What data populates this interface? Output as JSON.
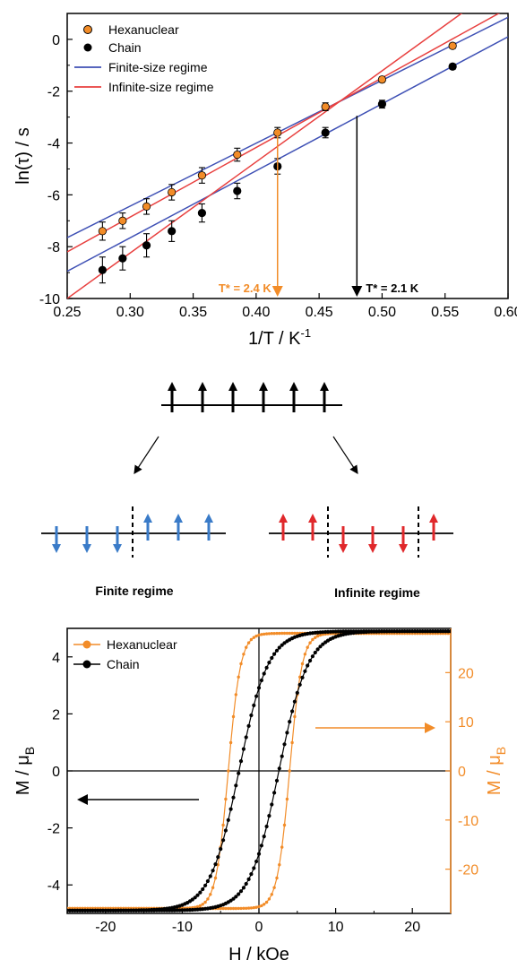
{
  "colors": {
    "orange": "#F28C28",
    "black": "#000000",
    "blue": "#3F51B5",
    "red": "#E8403F",
    "arrow_blue": "#3A7BC8",
    "arrow_red": "#E0282B"
  },
  "chart_data": [
    {
      "type": "scatter",
      "xlabel": "1/T / K",
      "xlabel_sup": "-1",
      "ylabel": "ln(τ) / s",
      "xlim": [
        0.25,
        0.6
      ],
      "ylim": [
        -10,
        1
      ],
      "xticks": [
        "0.25",
        "0.30",
        "0.35",
        "0.40",
        "0.45",
        "0.50",
        "0.55",
        "0.60"
      ],
      "yticks": [
        "-10",
        "-8",
        "-6",
        "-4",
        "-2",
        "0"
      ],
      "legend_position": "top-left",
      "series": [
        {
          "name": "Hexanuclear",
          "marker": "orange-circle",
          "x": [
            0.278,
            0.294,
            0.313,
            0.333,
            0.357,
            0.385,
            0.417,
            0.455,
            0.5,
            0.556
          ],
          "y": [
            -7.4,
            -7.0,
            -6.45,
            -5.9,
            -5.25,
            -4.45,
            -3.6,
            -2.6,
            -1.55,
            -0.25
          ],
          "err": [
            0.35,
            0.3,
            0.3,
            0.3,
            0.3,
            0.25,
            0.2,
            0.15,
            0.1,
            0.1
          ]
        },
        {
          "name": "Chain",
          "marker": "black-circle",
          "x": [
            0.278,
            0.294,
            0.313,
            0.333,
            0.357,
            0.385,
            0.417,
            0.455,
            0.5,
            0.556
          ],
          "y": [
            -8.9,
            -8.45,
            -7.95,
            -7.4,
            -6.7,
            -5.85,
            -4.9,
            -3.6,
            -2.5,
            -1.05
          ],
          "err": [
            0.5,
            0.45,
            0.45,
            0.4,
            0.35,
            0.3,
            0.3,
            0.2,
            0.15,
            0.1
          ]
        }
      ],
      "fit_lines": [
        {
          "name": "Finite-size regime",
          "color": "blue",
          "x": [
            0.25,
            0.6
          ],
          "y": [
            -7.65,
            0.85
          ]
        },
        {
          "name": "Finite-size regime",
          "color": "blue",
          "x": [
            0.25,
            0.6
          ],
          "y": [
            -8.95,
            0.1
          ]
        },
        {
          "name": "Infinite-size regime",
          "color": "red",
          "x": [
            0.25,
            0.6
          ],
          "y": [
            -8.2,
            1.2
          ]
        },
        {
          "name": "Infinite-size regime",
          "color": "red",
          "x": [
            0.25,
            0.6
          ],
          "y": [
            -10.0,
            2.3
          ]
        }
      ],
      "annotations": [
        {
          "text": "T* = 2.4 K",
          "x": 0.417,
          "color": "orange"
        },
        {
          "text": "T* = 2.1 K",
          "x": 0.48,
          "color": "black"
        }
      ]
    },
    {
      "type": "line",
      "xlabel": "H / kOe",
      "ylabel_left": "M / μ",
      "ylabel_left_sub": "B",
      "ylabel_right": "M / μ",
      "ylabel_right_sub": "B",
      "xlim": [
        -25,
        25
      ],
      "ylim_left": [
        -5,
        5
      ],
      "ylim_right": [
        -29,
        29
      ],
      "xticks": [
        "-20",
        "-10",
        "0",
        "10",
        "20"
      ],
      "yticks_left": [
        "-4",
        "-2",
        "0",
        "2",
        "4"
      ],
      "yticks_right": [
        "-20",
        "-10",
        "0",
        "10",
        "20"
      ],
      "legend_position": "top-left",
      "series": [
        {
          "name": "Hexanuclear",
          "axis": "right",
          "color": "orange",
          "Ms": 28,
          "Hc": 4.0,
          "width": 1.6
        },
        {
          "name": "Chain",
          "axis": "left",
          "color": "black",
          "Ms": 4.9,
          "Hc": 2.6,
          "width": 3.8
        }
      ]
    }
  ],
  "schematic": {
    "finite_label": "Finite regime",
    "infinite_label": "Infinite regime"
  }
}
